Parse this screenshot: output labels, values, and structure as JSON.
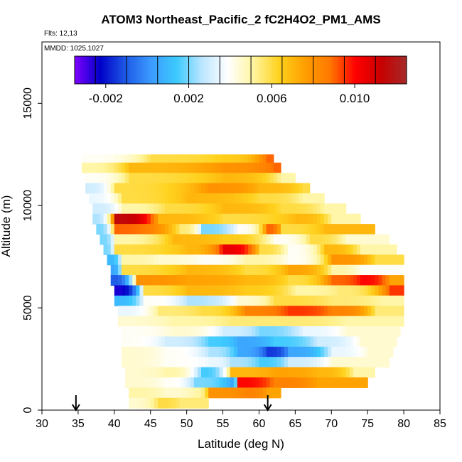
{
  "chart_data": {
    "type": "heatmap",
    "title": "ATOM3 Northeast_Pacific_2 fC2H4O2_PM1_AMS",
    "flights_label": "Flts: 12,13",
    "dates_label": "MMDD: 1025,1027",
    "xlabel": "Latitude (deg N)",
    "ylabel": "Altitude (m)",
    "xlim": [
      30,
      85
    ],
    "ylim": [
      0,
      18000
    ],
    "x_ticks": [
      "30",
      "35",
      "40",
      "45",
      "50",
      "55",
      "60",
      "65",
      "70",
      "75",
      "80",
      "85"
    ],
    "y_ticks": [
      "0",
      "5000",
      "10000",
      "15000"
    ],
    "colorbar": {
      "range": [
        -0.0035,
        0.0125
      ],
      "tick_labels": [
        "-0.002",
        "0.002",
        "0.006",
        "0.010"
      ],
      "tick_values": [
        -0.002,
        0.002,
        0.006,
        0.01
      ],
      "colors": [
        "#7f00ff",
        "#0000c8",
        "#1e5ae6",
        "#3c9bff",
        "#3ccaff",
        "#bde6ff",
        "#ffffff",
        "#fff5a0",
        "#ffd21e",
        "#ffa000",
        "#ff7800",
        "#ff0000",
        "#c80000",
        "#a52a2a"
      ]
    },
    "arrows_at_latitude": [
      34.7,
      61.2
    ],
    "bands": [
      {
        "alt": [
          12100,
          12500
        ],
        "lat": [
          35.5,
          62
        ],
        "segments": [
          [
            35.5,
            0.004
          ],
          [
            45,
            0.006
          ],
          [
            55,
            0.0065
          ],
          [
            61,
            0.009
          ]
        ]
      },
      {
        "alt": [
          11600,
          12100
        ],
        "lat": [
          35.5,
          63
        ],
        "segments": [
          [
            35.5,
            0.005
          ],
          [
            42,
            0.007
          ],
          [
            55,
            0.008
          ],
          [
            62,
            0.009
          ]
        ]
      },
      {
        "alt": [
          11100,
          11600
        ],
        "lat": [
          36,
          65
        ],
        "segments": [
          [
            36,
            0.004
          ],
          [
            42,
            0.006
          ],
          [
            55,
            0.007
          ],
          [
            63,
            0.005
          ]
        ]
      },
      {
        "alt": [
          10600,
          11100
        ],
        "lat": [
          36,
          67
        ],
        "segments": [
          [
            36,
            0.003
          ],
          [
            40,
            0.006
          ],
          [
            53,
            0.008
          ],
          [
            60,
            0.007
          ],
          [
            66,
            0.006
          ]
        ]
      },
      {
        "alt": [
          10100,
          10600
        ],
        "lat": [
          36.5,
          69
        ],
        "segments": [
          [
            36.5,
            0.0035
          ],
          [
            41,
            0.006
          ],
          [
            50,
            0.007
          ],
          [
            60,
            0.006
          ],
          [
            66,
            0.005
          ]
        ]
      },
      {
        "alt": [
          9600,
          10100
        ],
        "lat": [
          37,
          72
        ],
        "segments": [
          [
            37,
            0.003
          ],
          [
            41,
            0.005
          ],
          [
            47,
            0.006
          ],
          [
            55,
            0.007
          ],
          [
            63,
            0.006
          ],
          [
            69,
            0.005
          ]
        ]
      },
      {
        "alt": [
          9100,
          9600
        ],
        "lat": [
          37,
          74
        ],
        "segments": [
          [
            37,
            0.0025
          ],
          [
            40,
            0.0115
          ],
          [
            46,
            0.007
          ],
          [
            55,
            0.006
          ],
          [
            65,
            0.007
          ],
          [
            70,
            0.005
          ]
        ]
      },
      {
        "alt": [
          8600,
          9100
        ],
        "lat": [
          37.5,
          76
        ],
        "segments": [
          [
            37.5,
            0.002
          ],
          [
            40,
            0.009
          ],
          [
            49,
            0.0055
          ],
          [
            52,
            0.002
          ],
          [
            57,
            0.004
          ],
          [
            61,
            0.009
          ],
          [
            63,
            0.006
          ],
          [
            69,
            0.007
          ]
        ]
      },
      {
        "alt": [
          8100,
          8600
        ],
        "lat": [
          38,
          78
        ],
        "segments": [
          [
            38,
            0.002
          ],
          [
            40,
            0.005
          ],
          [
            48,
            0.007
          ],
          [
            55,
            0.0065
          ],
          [
            62,
            0.004
          ],
          [
            67,
            0.006
          ],
          [
            72,
            0.0045
          ]
        ]
      },
      {
        "alt": [
          7600,
          8100
        ],
        "lat": [
          38.5,
          79
        ],
        "segments": [
          [
            38.5,
            0.002
          ],
          [
            40,
            0.006
          ],
          [
            50,
            0.007
          ],
          [
            55,
            0.0105
          ],
          [
            60,
            0.006
          ],
          [
            64,
            0.004
          ],
          [
            69,
            0.007
          ],
          [
            74,
            0.005
          ]
        ]
      },
      {
        "alt": [
          7100,
          7600
        ],
        "lat": [
          39,
          80
        ],
        "segments": [
          [
            39,
            0.001
          ],
          [
            41,
            0.005
          ],
          [
            46,
            0.0045
          ],
          [
            52,
            0.004
          ],
          [
            58,
            0.005
          ],
          [
            64,
            0.004
          ],
          [
            70,
            0.008
          ],
          [
            76,
            0.006
          ]
        ]
      },
      {
        "alt": [
          6600,
          7100
        ],
        "lat": [
          39.5,
          80
        ],
        "segments": [
          [
            39.5,
            0.0005
          ],
          [
            41,
            0.006
          ],
          [
            50,
            0.007
          ],
          [
            58,
            0.006
          ],
          [
            64,
            0.0075
          ],
          [
            70,
            0.005
          ],
          [
            74,
            0.004
          ]
        ]
      },
      {
        "alt": [
          6100,
          6600
        ],
        "lat": [
          39.5,
          80
        ],
        "segments": [
          [
            39.5,
            -0.001
          ],
          [
            43,
            0.008
          ],
          [
            50,
            0.0075
          ],
          [
            58,
            0.007
          ],
          [
            64,
            0.006
          ],
          [
            70,
            0.009
          ],
          [
            74,
            0.01
          ],
          [
            78,
            0.0075
          ]
        ]
      },
      {
        "alt": [
          5600,
          6100
        ],
        "lat": [
          40,
          80
        ],
        "segments": [
          [
            40,
            -0.0025
          ],
          [
            44,
            0.006
          ],
          [
            50,
            0.007
          ],
          [
            58,
            0.0065
          ],
          [
            65,
            0.005
          ],
          [
            71,
            0.0055
          ],
          [
            78,
            0.0095
          ]
        ]
      },
      {
        "alt": [
          5100,
          5600
        ],
        "lat": [
          40,
          80
        ],
        "segments": [
          [
            40,
            0.001
          ],
          [
            44,
            0.004
          ],
          [
            50,
            0.0025
          ],
          [
            57,
            0.0045
          ],
          [
            62,
            0.006
          ],
          [
            70,
            0.0055
          ],
          [
            77,
            0.005
          ]
        ]
      },
      {
        "alt": [
          4600,
          5100
        ],
        "lat": [
          40.5,
          80
        ],
        "segments": [
          [
            40.5,
            0.0035
          ],
          [
            46,
            0.0055
          ],
          [
            52,
            0.006
          ],
          [
            58,
            0.0085
          ],
          [
            64,
            0.0095
          ],
          [
            70,
            0.0085
          ],
          [
            76,
            0.0055
          ]
        ]
      },
      {
        "alt": [
          4100,
          4600
        ],
        "lat": [
          40.5,
          80
        ],
        "segments": [
          [
            40.5,
            0.0045
          ],
          [
            48,
            0.005
          ],
          [
            56,
            0.0055
          ],
          [
            64,
            0.0055
          ],
          [
            72,
            0.005
          ]
        ]
      },
      {
        "alt": [
          3600,
          4100
        ],
        "lat": [
          41,
          79.5
        ],
        "segments": [
          [
            41,
            0.004
          ],
          [
            48,
            0.0045
          ],
          [
            55,
            0.003
          ],
          [
            60,
            0.002
          ],
          [
            66,
            0.0035
          ],
          [
            72,
            0.0045
          ]
        ]
      },
      {
        "alt": [
          3100,
          3600
        ],
        "lat": [
          41,
          79
        ],
        "segments": [
          [
            41,
            0.004
          ],
          [
            47,
            0.003
          ],
          [
            53,
            0.0015
          ],
          [
            57,
            0.0005
          ],
          [
            62,
            0.0015
          ],
          [
            68,
            0.003
          ],
          [
            74,
            0.0045
          ]
        ]
      },
      {
        "alt": [
          2600,
          3100
        ],
        "lat": [
          41,
          78.5
        ],
        "segments": [
          [
            41,
            0.0045
          ],
          [
            47,
            0.004
          ],
          [
            53,
            0.0025
          ],
          [
            57,
            0.0005
          ],
          [
            61,
            -0.0015
          ],
          [
            64,
            0.0005
          ],
          [
            70,
            0.0035
          ],
          [
            75,
            0.0045
          ]
        ]
      },
      {
        "alt": [
          2100,
          2600
        ],
        "lat": [
          41,
          78
        ],
        "segments": [
          [
            41,
            0.0045
          ],
          [
            47,
            0.004
          ],
          [
            53,
            0.0035
          ],
          [
            56,
            0.0025
          ],
          [
            60,
            0.0015
          ],
          [
            64,
            0.003
          ],
          [
            70,
            0.0045
          ]
        ]
      },
      {
        "alt": [
          1600,
          2100
        ],
        "lat": [
          41.5,
          76
        ],
        "segments": [
          [
            41.5,
            0.0045
          ],
          [
            47,
            0.005
          ],
          [
            52,
            0.0015
          ],
          [
            56,
            0.007
          ],
          [
            62,
            0.0075
          ],
          [
            68,
            0.007
          ],
          [
            73,
            0.005
          ]
        ]
      },
      {
        "alt": [
          1100,
          1600
        ],
        "lat": [
          41.5,
          75
        ],
        "segments": [
          [
            41.5,
            0.0045
          ],
          [
            47,
            0.004
          ],
          [
            51,
            0.002
          ],
          [
            56,
            0.0005
          ],
          [
            57,
            0.01
          ],
          [
            62,
            0.0085
          ],
          [
            68,
            0.0075
          ]
        ]
      },
      {
        "alt": [
          600,
          1100
        ],
        "lat": [
          42,
          63
        ],
        "segments": [
          [
            42,
            0.005
          ],
          [
            47,
            0.0045
          ],
          [
            51,
            0.005
          ],
          [
            53,
            0.008
          ],
          [
            58,
            0.0085
          ],
          [
            61,
            0.0075
          ]
        ]
      },
      {
        "alt": [
          100,
          600
        ],
        "lat": [
          42,
          53
        ],
        "segments": [
          [
            42,
            0.0045
          ],
          [
            46,
            0.006
          ],
          [
            49,
            0.0055
          ]
        ]
      }
    ]
  }
}
